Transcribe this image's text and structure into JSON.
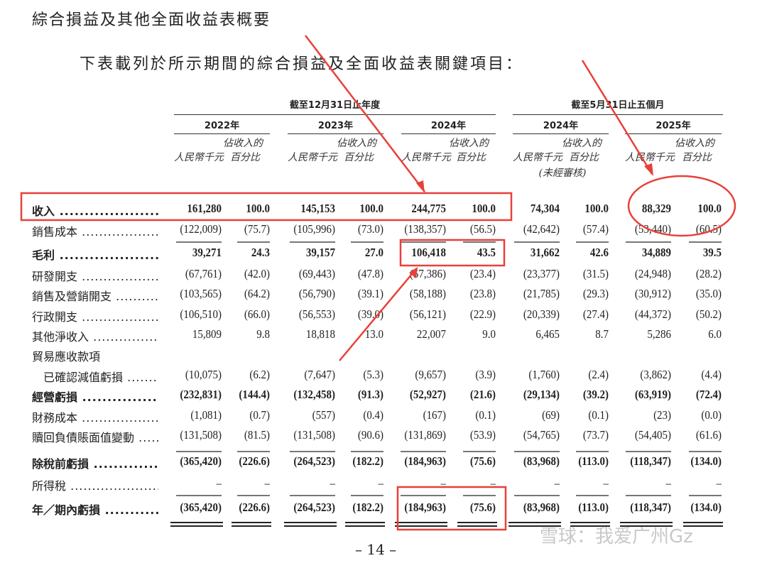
{
  "title": "綜合損益及其他全面收益表概要",
  "intro": "下表載列於所示期間的綜合損益及全面收益表關鍵項目：",
  "header": {
    "group_annual": "截至12月31日止年度",
    "group_five_months": "截至5月31日止五個月",
    "years": [
      "2022年",
      "2023年",
      "2024年",
      "2024年",
      "2025年"
    ],
    "col_amount": "人民幣千元",
    "col_pct_line1": "佔收入的",
    "col_pct_line2": "百分比",
    "unaudited": "(未經審核)"
  },
  "rows": [
    {
      "label": "收入",
      "bold": true,
      "values": [
        "161,280",
        "100.0",
        "145,153",
        "100.0",
        "244,775",
        "100.0",
        "74,304",
        "100.0",
        "88,329",
        "100.0"
      ]
    },
    {
      "label": "銷售成本",
      "values": [
        "(122,009)",
        "(75.7)",
        "(105,996)",
        "(73.0)",
        "(138,357)",
        "(56.5)",
        "(42,642)",
        "(57.4)",
        "(53,440)",
        "(60.5)"
      ]
    },
    {
      "label": "毛利",
      "bold": true,
      "values": [
        "39,271",
        "24.3",
        "39,157",
        "27.0",
        "106,418",
        "43.5",
        "31,662",
        "42.6",
        "34,889",
        "39.5"
      ]
    },
    {
      "label": "研發開支",
      "values": [
        "(67,761)",
        "(42.0)",
        "(69,443)",
        "(47.8)",
        "(57,386)",
        "(23.4)",
        "(23,377)",
        "(31.5)",
        "(24,948)",
        "(28.2)"
      ]
    },
    {
      "label": "銷售及營銷開支",
      "values": [
        "(103,565)",
        "(64.2)",
        "(56,790)",
        "(39.1)",
        "(58,188)",
        "(23.8)",
        "(21,785)",
        "(29.3)",
        "(30,912)",
        "(35.0)"
      ]
    },
    {
      "label": "行政開支",
      "values": [
        "(106,510)",
        "(66.0)",
        "(56,553)",
        "(39.0)",
        "(56,121)",
        "(22.9)",
        "(20,339)",
        "(27.4)",
        "(44,372)",
        "(50.2)"
      ]
    },
    {
      "label": "其他淨收入",
      "values": [
        "15,809",
        "9.8",
        "18,818",
        "13.0",
        "22,007",
        "9.0",
        "6,465",
        "8.7",
        "5,286",
        "6.0"
      ]
    },
    {
      "label": "貿易應收款項",
      "nodots": true,
      "values": []
    },
    {
      "label": "已確認減值虧損",
      "indent": true,
      "values": [
        "(10,075)",
        "(6.2)",
        "(7,647)",
        "(5.3)",
        "(9,657)",
        "(3.9)",
        "(1,760)",
        "(2.4)",
        "(3,862)",
        "(4.4)"
      ]
    },
    {
      "label": "經營虧損",
      "bold": true,
      "values": [
        "(232,831)",
        "(144.4)",
        "(132,458)",
        "(91.3)",
        "(52,927)",
        "(21.6)",
        "(29,134)",
        "(39.2)",
        "(63,919)",
        "(72.4)"
      ]
    },
    {
      "label": "財務成本",
      "values": [
        "(1,081)",
        "(0.7)",
        "(557)",
        "(0.4)",
        "(167)",
        "(0.1)",
        "(69)",
        "(0.1)",
        "(23)",
        "(0.0)"
      ]
    },
    {
      "label": "贖回負債賬面值變動",
      "values": [
        "(131,508)",
        "(81.5)",
        "(131,508)",
        "(90.6)",
        "(131,869)",
        "(53.9)",
        "(54,765)",
        "(73.7)",
        "(54,405)",
        "(61.6)"
      ]
    },
    {
      "label": "除稅前虧損",
      "bold": true,
      "values": [
        "(365,420)",
        "(226.6)",
        "(264,523)",
        "(182.2)",
        "(184,963)",
        "(75.6)",
        "(83,968)",
        "(113.0)",
        "(118,347)",
        "(134.0)"
      ]
    },
    {
      "label": "所得稅",
      "values": [
        "–",
        "–",
        "–",
        "–",
        "–",
        "–",
        "–",
        "–",
        "–",
        "–"
      ]
    },
    {
      "label": "年／期內虧損",
      "bold": true,
      "values": [
        "(365,420)",
        "(226.6)",
        "(264,523)",
        "(182.2)",
        "(184,963)",
        "(75.6)",
        "(83,968)",
        "(113.0)",
        "(118,347)",
        "(134.0)"
      ]
    }
  ],
  "page_number": "– 14 –",
  "watermark": "雪球：我爱广州Gz",
  "annotation_color": "#e8403a"
}
